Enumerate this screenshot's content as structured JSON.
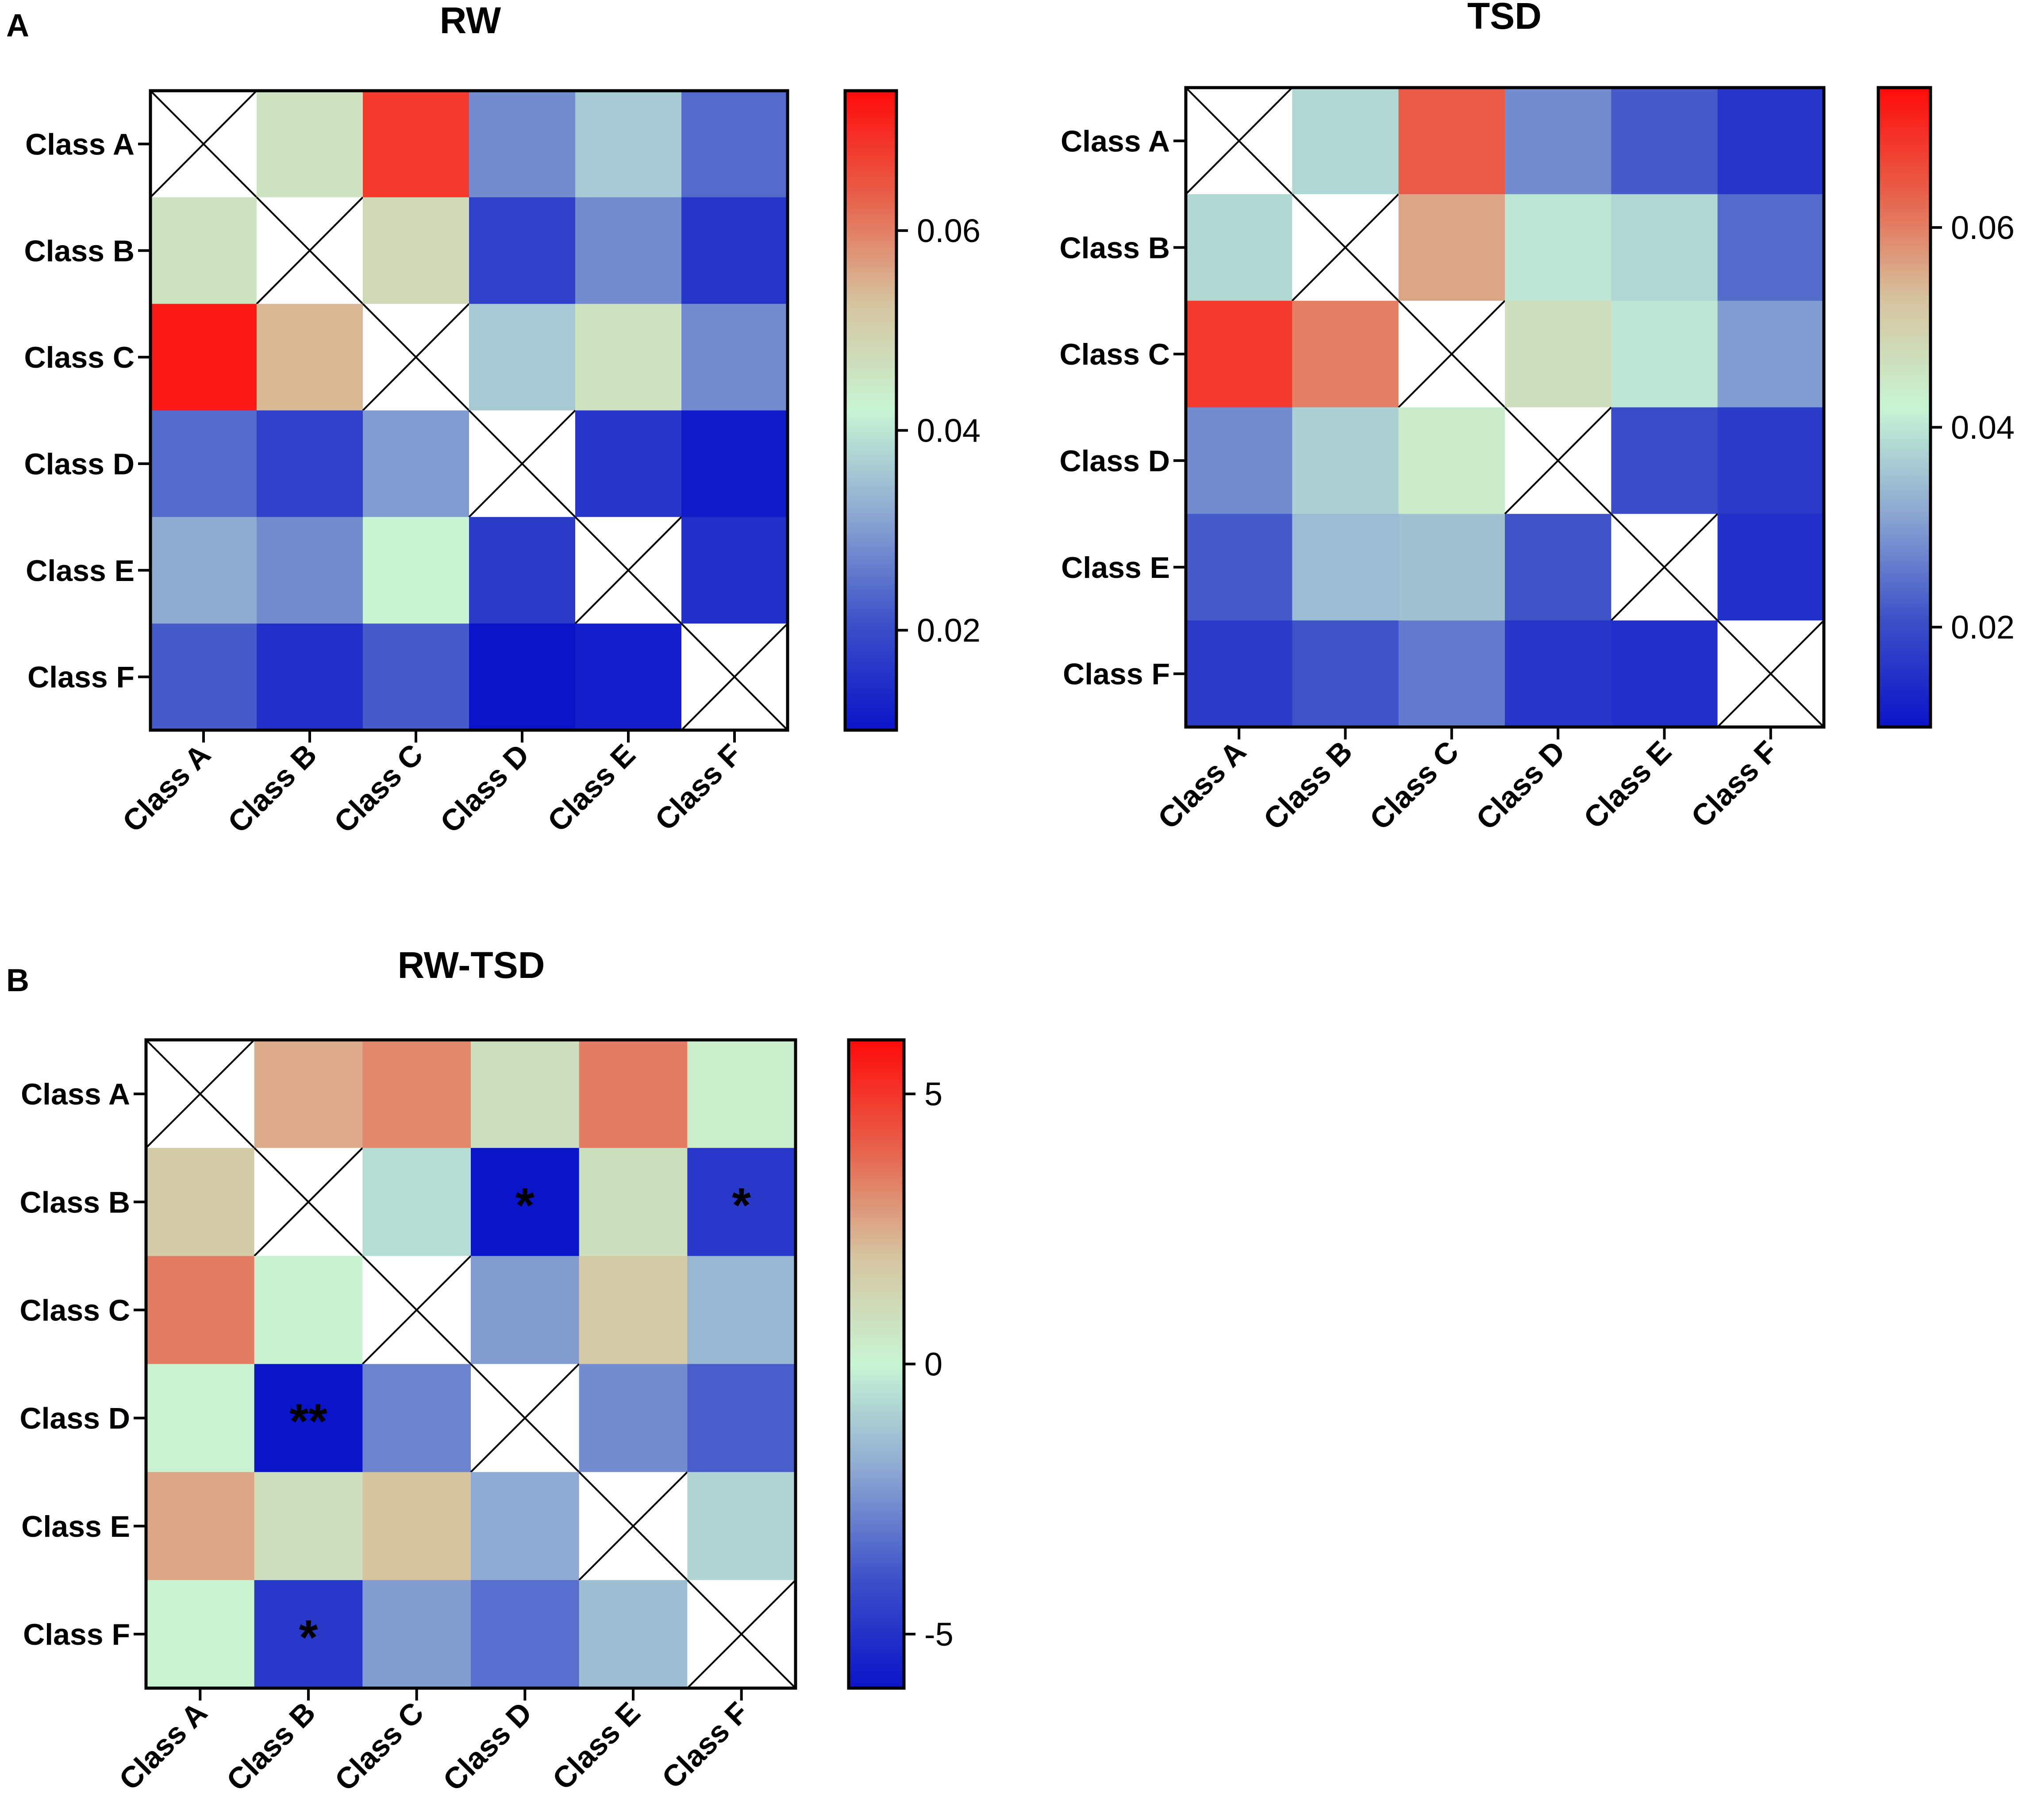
{
  "figure": {
    "panel_labels": [
      "A",
      "B"
    ],
    "cross_color": "#000000"
  },
  "chart_data": [
    {
      "id": "rw",
      "type": "heatmap",
      "panel": "A",
      "title": "RW",
      "rows": [
        "Class A",
        "Class B",
        "Class C",
        "Class D",
        "Class E",
        "Class F"
      ],
      "columns": [
        "Class A",
        "Class B",
        "Class C",
        "Class D",
        "Class E",
        "Class F"
      ],
      "values": [
        [
          null,
          0.046,
          0.068,
          0.028,
          0.036,
          0.024
        ],
        [
          0.046,
          null,
          0.048,
          0.018,
          0.028,
          0.016
        ],
        [
          0.072,
          0.054,
          null,
          0.036,
          0.046,
          0.028
        ],
        [
          0.024,
          0.018,
          0.03,
          null,
          0.016,
          0.011
        ],
        [
          0.032,
          0.028,
          0.042,
          0.017,
          null,
          0.015
        ],
        [
          0.022,
          0.015,
          0.022,
          0.01,
          0.012,
          null
        ]
      ],
      "annotations": [],
      "colorbar": {
        "range": [
          0.01,
          0.074
        ],
        "ticks": [
          0.02,
          0.04,
          0.06
        ],
        "tick_labels": [
          "0.02",
          "0.04",
          "0.06"
        ]
      }
    },
    {
      "id": "tsd",
      "type": "heatmap",
      "panel": "A",
      "title": "TSD",
      "rows": [
        "Class A",
        "Class B",
        "Class C",
        "Class D",
        "Class E",
        "Class F"
      ],
      "columns": [
        "Class A",
        "Class B",
        "Class C",
        "Class D",
        "Class E",
        "Class F"
      ],
      "values": [
        [
          null,
          0.038,
          0.064,
          0.028,
          0.022,
          0.016
        ],
        [
          0.038,
          null,
          0.056,
          0.04,
          0.038,
          0.024
        ],
        [
          0.068,
          0.06,
          null,
          0.047,
          0.04,
          0.03
        ],
        [
          0.028,
          0.037,
          0.044,
          null,
          0.02,
          0.017
        ],
        [
          0.022,
          0.034,
          0.035,
          0.021,
          null,
          0.015
        ],
        [
          0.017,
          0.021,
          0.026,
          0.016,
          0.015,
          null
        ]
      ],
      "annotations": [],
      "colorbar": {
        "range": [
          0.01,
          0.074
        ],
        "ticks": [
          0.02,
          0.04,
          0.06
        ],
        "tick_labels": [
          "0.02",
          "0.04",
          "0.06"
        ]
      }
    },
    {
      "id": "rwtsd",
      "type": "heatmap",
      "panel": "B",
      "title": "RW-TSD",
      "rows": [
        "Class A",
        "Class B",
        "Class C",
        "Class D",
        "Class E",
        "Class F"
      ],
      "columns": [
        "Class A",
        "Class B",
        "Class C",
        "Class D",
        "Class E",
        "Class F"
      ],
      "values": [
        [
          null,
          2.5,
          3.2,
          0.9,
          3.4,
          0.3
        ],
        [
          1.7,
          null,
          -0.6,
          -6.0,
          0.8,
          -4.8
        ],
        [
          3.4,
          0.2,
          null,
          -2.2,
          1.7,
          -1.6
        ],
        [
          0.1,
          -6.0,
          -2.8,
          null,
          -2.6,
          -3.7
        ],
        [
          2.6,
          0.9,
          2.0,
          -1.9,
          null,
          -0.8
        ],
        [
          0.1,
          -4.8,
          -2.2,
          -3.3,
          -1.4,
          null
        ]
      ],
      "annotations": [
        {
          "row": 1,
          "col": 3,
          "text": "*"
        },
        {
          "row": 1,
          "col": 5,
          "text": "*"
        },
        {
          "row": 3,
          "col": 1,
          "text": "**"
        },
        {
          "row": 5,
          "col": 1,
          "text": "*"
        }
      ],
      "colorbar": {
        "range": [
          -6.0,
          6.0
        ],
        "ticks": [
          5,
          0,
          -5
        ],
        "tick_labels": [
          "5",
          "0",
          "-5"
        ]
      }
    }
  ],
  "colormap": [
    "#0a14c8",
    "#3c50c8",
    "#8ca6d2",
    "#c8f5d4",
    "#d6c4a0",
    "#e8604a",
    "#ff0a0a"
  ]
}
